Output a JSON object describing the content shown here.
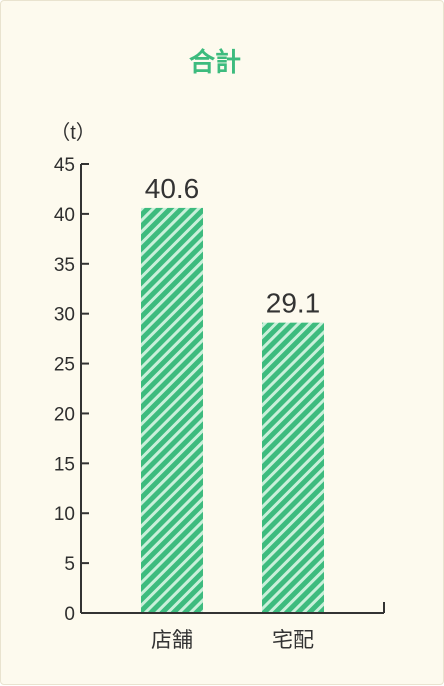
{
  "colors": {
    "accent": "#3dbb7e",
    "bar_stripe_light": "#c9f0da",
    "background": "#fdfaee",
    "axis": "#333333"
  },
  "chart_data": {
    "type": "bar",
    "title": "合計",
    "unit_label": "（t）",
    "categories": [
      "店舗",
      "宅配"
    ],
    "values": [
      40.6,
      29.1
    ],
    "value_labels": [
      "40.6",
      "29.1"
    ],
    "ylim": [
      0,
      45
    ],
    "yticks": [
      "0",
      "5",
      "10",
      "15",
      "20",
      "25",
      "30",
      "35",
      "40",
      "45"
    ],
    "xlabel": "",
    "ylabel": "",
    "grid": false,
    "bar_pattern": "diagonal-stripes"
  }
}
